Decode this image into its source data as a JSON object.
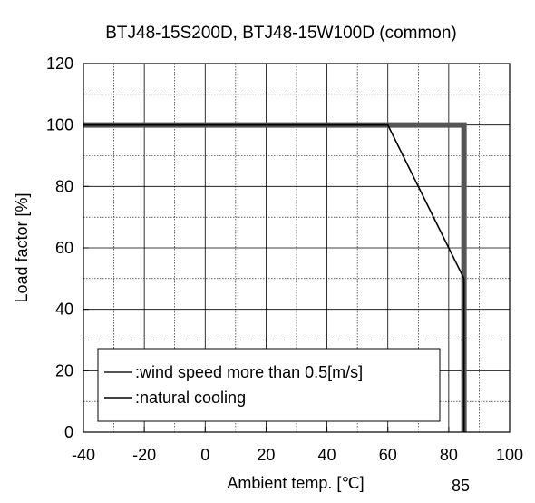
{
  "chart_data": {
    "type": "line",
    "title": "BTJ48-15S200D, BTJ48-15W100D (common)",
    "xlabel": "Ambient temp. [℃]",
    "ylabel": "Load factor [%]",
    "xlim": [
      -40,
      100
    ],
    "ylim": [
      0,
      120
    ],
    "x_ticks": [
      -40,
      -20,
      0,
      20,
      40,
      60,
      80,
      100
    ],
    "y_ticks": [
      0,
      20,
      40,
      60,
      80,
      100,
      120
    ],
    "x_minor_step": 10,
    "y_minor_step": 10,
    "grid": true,
    "annotations": [
      {
        "text": "85",
        "x": 85
      }
    ],
    "legend": {
      "placement": "bottom-left",
      "entries": [
        {
          "label": ":wind speed more than 0.5[m/s]",
          "color": "#555555"
        },
        {
          "label": ":natural cooling",
          "color": "#000000"
        }
      ]
    },
    "series": [
      {
        "label_ref": 0,
        "color": "#555555",
        "points": [
          [
            -40,
            100
          ],
          [
            85,
            100
          ],
          [
            85,
            0
          ]
        ]
      },
      {
        "label_ref": 1,
        "color": "#000000",
        "points": [
          [
            -40,
            100
          ],
          [
            60,
            100
          ],
          [
            85,
            50
          ],
          [
            85,
            0
          ]
        ]
      }
    ]
  }
}
